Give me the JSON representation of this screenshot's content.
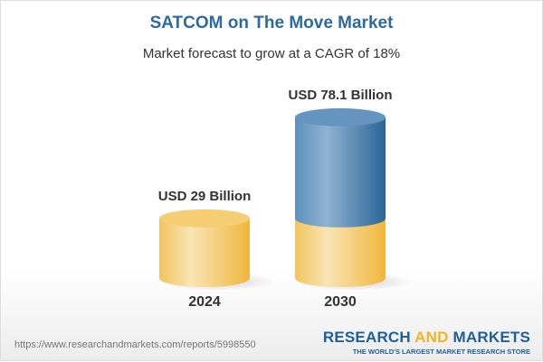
{
  "chart_data": {
    "type": "bar",
    "title": "SATCOM on The Move Market",
    "subtitle": "Market forecast to grow at a CAGR of 18%",
    "categories": [
      "2024",
      "2030"
    ],
    "values": [
      29,
      78.1
    ],
    "data_labels": [
      "USD 29 Billion",
      "USD 78.1 Billion"
    ],
    "unit": "USD Billion",
    "colors": {
      "base": "#f2c04e",
      "growth": "#3f7bb0"
    }
  },
  "footer": {
    "url": "https://www.researchandmarkets.com/reports/5998550",
    "logo_part1": "RESEARCH ",
    "logo_part2": "AND",
    "logo_part3": " MARKETS",
    "tagline": "THE WORLD'S LARGEST MARKET RESEARCH STORE"
  }
}
